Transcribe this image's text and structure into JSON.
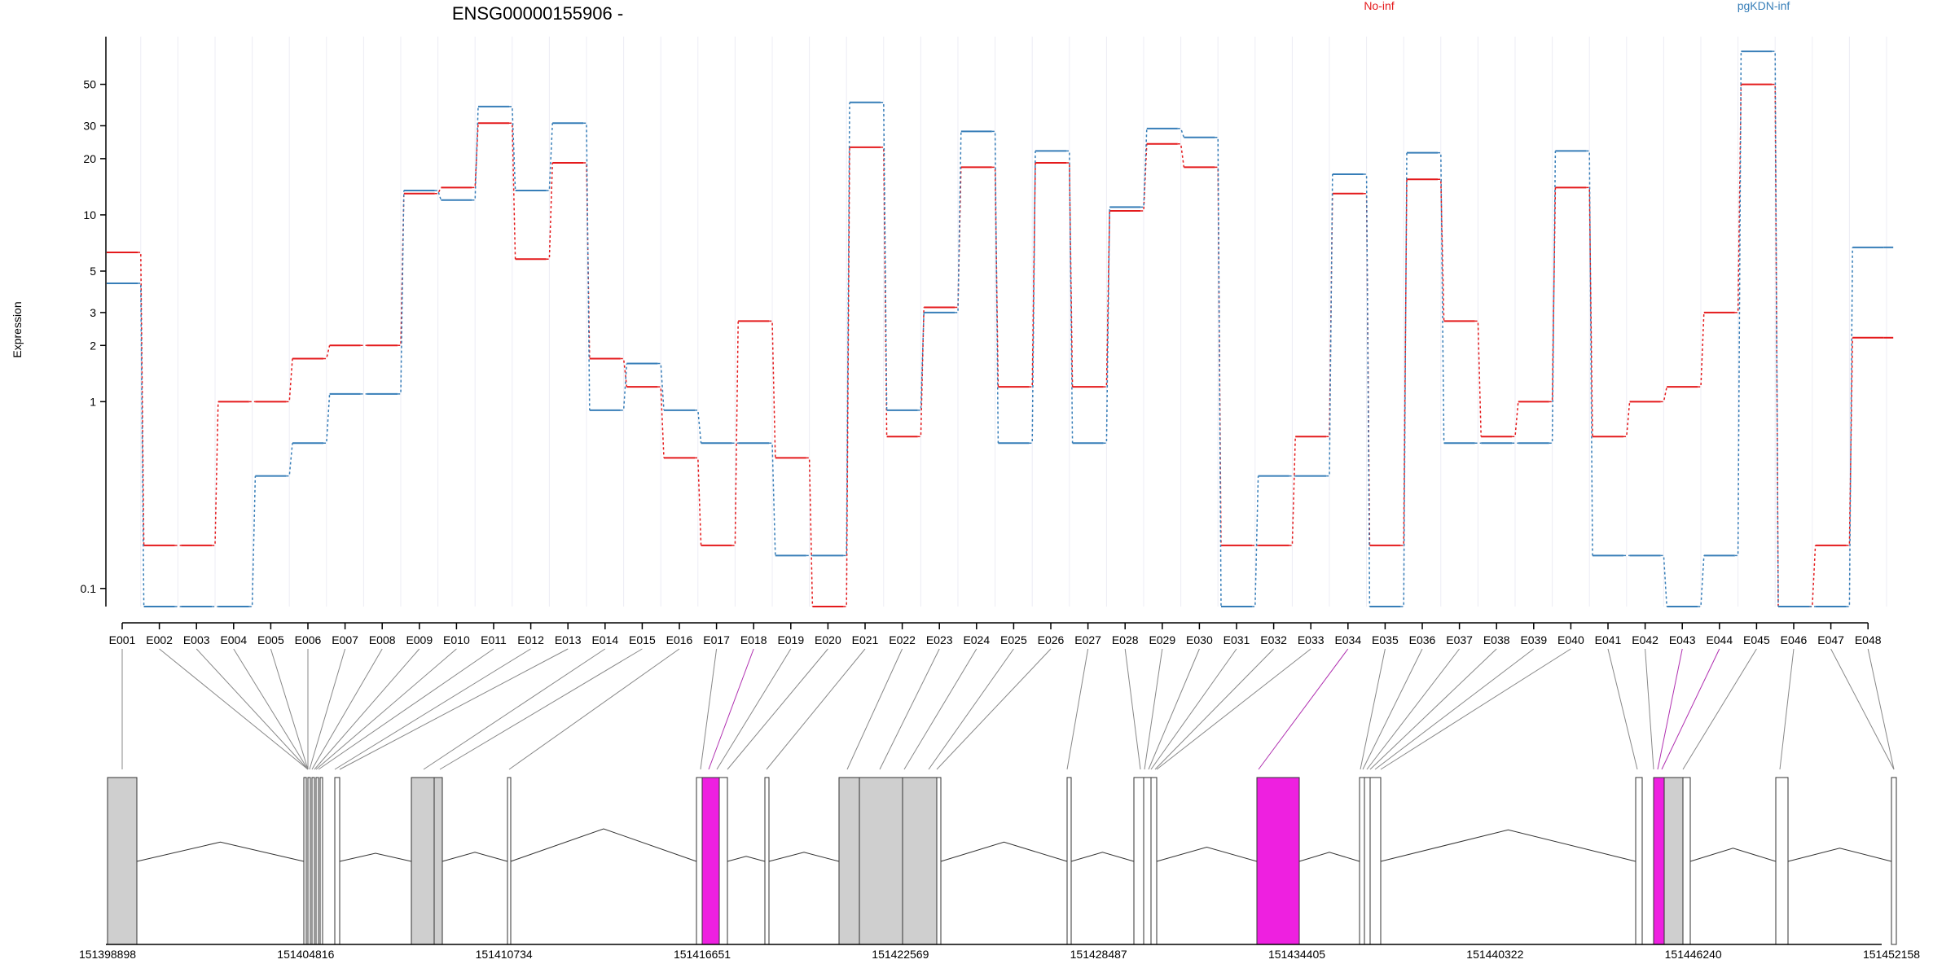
{
  "title": "ENSG00000155906 -",
  "legend": [
    {
      "name": "No-inf",
      "color": "#E41A1C"
    },
    {
      "name": "pgKDN-inf",
      "color": "#377EB8"
    }
  ],
  "chart_data": {
    "type": "line",
    "scale": "log",
    "ylabel": "Expression",
    "yticks": [
      0.1,
      1,
      2,
      3,
      5,
      10,
      20,
      30,
      50
    ],
    "ylim": [
      0.08,
      90
    ],
    "grid": true,
    "categories": [
      "E001",
      "E002",
      "E003",
      "E004",
      "E005",
      "E006",
      "E007",
      "E008",
      "E009",
      "E010",
      "E011",
      "E012",
      "E013",
      "E014",
      "E015",
      "E016",
      "E017",
      "E018",
      "E019",
      "E020",
      "E021",
      "E022",
      "E023",
      "E024",
      "E025",
      "E026",
      "E027",
      "E028",
      "E029",
      "E030",
      "E031",
      "E032",
      "E033",
      "E034",
      "E035",
      "E036",
      "E037",
      "E038",
      "E039",
      "E040",
      "E041",
      "E042",
      "E043",
      "E044",
      "E045",
      "E046",
      "E047",
      "E048"
    ],
    "series": [
      {
        "name": "No-inf",
        "color": "#E41A1C",
        "values": [
          6.3,
          0.17,
          0.17,
          1.0,
          1.0,
          1.7,
          2.0,
          2.0,
          13,
          14,
          31,
          5.8,
          19,
          1.7,
          1.2,
          0.5,
          0.17,
          2.7,
          0.5,
          0.08,
          23,
          0.65,
          3.2,
          18,
          1.2,
          19,
          1.2,
          10.5,
          24,
          18,
          0.17,
          0.17,
          0.65,
          13,
          0.17,
          15.5,
          2.7,
          0.65,
          1.0,
          14,
          0.65,
          1.0,
          1.2,
          3.0,
          50,
          0.08,
          0.17,
          2.2
        ]
      },
      {
        "name": "pgKDN-inf",
        "color": "#377EB8",
        "values": [
          4.3,
          0.08,
          0.08,
          0.08,
          0.4,
          0.6,
          1.1,
          1.1,
          13.5,
          12,
          38,
          13.5,
          31,
          0.9,
          1.6,
          0.9,
          0.6,
          0.6,
          0.15,
          0.15,
          40,
          0.9,
          3.0,
          28,
          0.6,
          22,
          0.6,
          11,
          29,
          26,
          0.08,
          0.4,
          0.4,
          16.5,
          0.08,
          21.5,
          0.6,
          0.6,
          0.6,
          22,
          0.15,
          0.15,
          0.08,
          0.15,
          75,
          0.08,
          0.08,
          6.7
        ]
      }
    ],
    "track_coordinates": [
      "151398898",
      "151404816",
      "151410734",
      "151416651",
      "151422569",
      "151428487",
      "151434405",
      "151440322",
      "151446240",
      "151452158"
    ]
  }
}
